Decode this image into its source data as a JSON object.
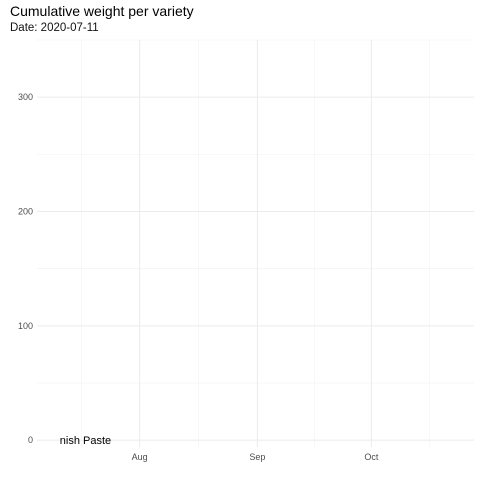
{
  "chart_data": {
    "type": "line",
    "title": "Cumulative weight per variety",
    "subtitle": "Date: 2020-07-11",
    "xlabel": "",
    "ylabel": "",
    "x_ticks": [
      {
        "label": "Aug",
        "date": "2020-08-01"
      },
      {
        "label": "Sep",
        "date": "2020-09-01"
      },
      {
        "label": "Oct",
        "date": "2020-10-01"
      }
    ],
    "xlim": [
      "2020-07-05",
      "2020-10-28"
    ],
    "y_ticks": [
      0,
      100,
      200,
      300
    ],
    "ylim": [
      -6,
      350
    ],
    "grid": true,
    "series": [
      {
        "name": "nish Paste",
        "x": [
          "2020-07-11"
        ],
        "y": [
          0
        ]
      }
    ]
  }
}
